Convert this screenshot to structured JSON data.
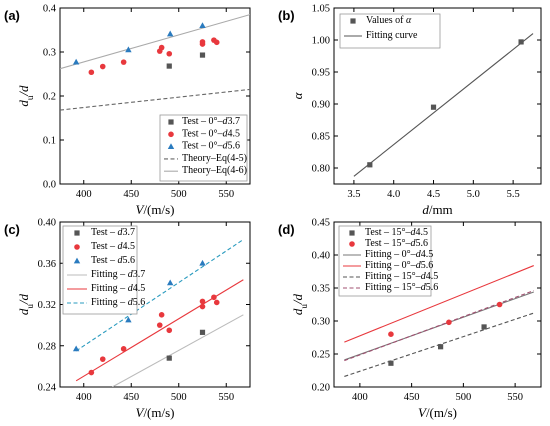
{
  "chart_data": [
    {
      "panel": "(a)",
      "type": "scatter",
      "xlabel": "V/(m/s)",
      "ylabel": "du/d",
      "xlim": [
        375,
        575
      ],
      "ylim": [
        0.0,
        0.4
      ],
      "xticks": [
        "400",
        "450",
        "500",
        "550"
      ],
      "yticks": [
        "0.0",
        "0.1",
        "0.2",
        "0.3",
        "0.4"
      ],
      "legend_position": "bottom-right",
      "series": [
        {
          "name": "Test – 0°–d3.7",
          "marker": "square",
          "color": "#555555",
          "x": [
            490,
            525
          ],
          "y": [
            0.268,
            0.293
          ]
        },
        {
          "name": "Test – 0°–d4.5",
          "marker": "circle",
          "color": "#e8383d",
          "x": [
            408,
            420,
            442,
            480,
            482,
            490,
            525,
            525,
            537,
            540
          ],
          "y": [
            0.254,
            0.267,
            0.277,
            0.302,
            0.31,
            0.296,
            0.318,
            0.323,
            0.327,
            0.322
          ]
        },
        {
          "name": "Test – 0°–d5.6",
          "marker": "triangle",
          "color": "#2a7bbf",
          "x": [
            392,
            447,
            491,
            525
          ],
          "y": [
            0.277,
            0.305,
            0.341,
            0.36
          ]
        },
        {
          "name": "Theory–Eq(4-5)",
          "line": "dashed",
          "color": "#666666",
          "x": [
            375,
            575
          ],
          "y": [
            0.168,
            0.215
          ]
        },
        {
          "name": "Theory–Eq(4-6)",
          "line": "solid",
          "color": "#aaaaaa",
          "x": [
            375,
            575
          ],
          "y": [
            0.262,
            0.385
          ]
        }
      ]
    },
    {
      "panel": "(b)",
      "type": "scatter",
      "xlabel": "d/mm",
      "ylabel": "α",
      "xlim": [
        3.25,
        5.85
      ],
      "ylim": [
        0.775,
        1.05
      ],
      "xticks": [
        "3.5",
        "4.0",
        "4.5",
        "5.0",
        "5.5"
      ],
      "yticks": [
        "0.80",
        "0.85",
        "0.90",
        "0.95",
        "1.00",
        "1.05"
      ],
      "legend_position": "top-left",
      "series": [
        {
          "name": "Values of α",
          "marker": "square",
          "color": "#555555",
          "x": [
            3.7,
            4.5,
            5.6
          ],
          "y": [
            0.805,
            0.895,
            0.997
          ]
        },
        {
          "name": "Fitting curve",
          "line": "solid",
          "color": "#555555",
          "x": [
            3.5,
            5.75
          ],
          "y": [
            0.787,
            1.01
          ]
        }
      ]
    },
    {
      "panel": "(c)",
      "type": "scatter",
      "xlabel": "V/(m/s)",
      "ylabel": "du/d",
      "xlim": [
        375,
        575
      ],
      "ylim": [
        0.24,
        0.4
      ],
      "xticks": [
        "400",
        "450",
        "500",
        "550"
      ],
      "yticks": [
        "0.24",
        "0.28",
        "0.32",
        "0.36",
        "0.40"
      ],
      "legend_position": "top-left",
      "series": [
        {
          "name": "Test – d3.7",
          "marker": "square",
          "color": "#555555",
          "x": [
            490,
            525
          ],
          "y": [
            0.268,
            0.293
          ]
        },
        {
          "name": "Test – d4.5",
          "marker": "circle",
          "color": "#e8383d",
          "x": [
            408,
            420,
            442,
            480,
            482,
            490,
            525,
            525,
            537,
            540
          ],
          "y": [
            0.254,
            0.267,
            0.277,
            0.3,
            0.31,
            0.295,
            0.318,
            0.323,
            0.327,
            0.322
          ]
        },
        {
          "name": "Test – d5.6",
          "marker": "triangle",
          "color": "#2a7bbf",
          "x": [
            392,
            447,
            491,
            525
          ],
          "y": [
            0.277,
            0.305,
            0.341,
            0.36
          ]
        },
        {
          "name": "Fitting – d3.7",
          "line": "solid",
          "color": "#bbbbbb",
          "x": [
            430,
            568
          ],
          "y": [
            0.24,
            0.31
          ]
        },
        {
          "name": "Fitting – d4.5",
          "line": "solid",
          "color": "#e8383d",
          "x": [
            392,
            568
          ],
          "y": [
            0.246,
            0.344
          ]
        },
        {
          "name": "Fitting – d5.6",
          "line": "dashed",
          "color": "#2a9bbf",
          "x": [
            392,
            568
          ],
          "y": [
            0.275,
            0.383
          ]
        }
      ]
    },
    {
      "panel": "(d)",
      "type": "scatter",
      "xlabel": "V/(m/s)",
      "ylabel": "du/d",
      "xlim": [
        375,
        575
      ],
      "ylim": [
        0.2,
        0.45
      ],
      "xticks": [
        "400",
        "450",
        "500",
        "550"
      ],
      "yticks": [
        "0.20",
        "0.25",
        "0.30",
        "0.35",
        "0.40",
        "0.45"
      ],
      "legend_position": "top-left",
      "series": [
        {
          "name": "Test – 15°–d4.5",
          "marker": "square",
          "color": "#555555",
          "x": [
            430,
            478,
            520
          ],
          "y": [
            0.236,
            0.261,
            0.291
          ]
        },
        {
          "name": "Test – 15°–d5.6",
          "marker": "circle",
          "color": "#e8383d",
          "x": [
            430,
            486,
            535
          ],
          "y": [
            0.28,
            0.298,
            0.325
          ]
        },
        {
          "name": "Fitting – 0°–d4.5",
          "line": "solid",
          "color": "#777777",
          "x": [
            385,
            568
          ],
          "y": [
            0.241,
            0.344
          ]
        },
        {
          "name": "Fitting – 0°–d5.6",
          "line": "solid",
          "color": "#e8383d",
          "x": [
            385,
            568
          ],
          "y": [
            0.268,
            0.384
          ]
        },
        {
          "name": "Fitting – 15°–d4.5",
          "line": "dashed",
          "color": "#555555",
          "x": [
            385,
            568
          ],
          "y": [
            0.216,
            0.312
          ]
        },
        {
          "name": "Fitting – 15°–d5.6",
          "line": "dashed",
          "color": "#a05070",
          "x": [
            385,
            568
          ],
          "y": [
            0.24,
            0.346
          ]
        }
      ]
    }
  ]
}
